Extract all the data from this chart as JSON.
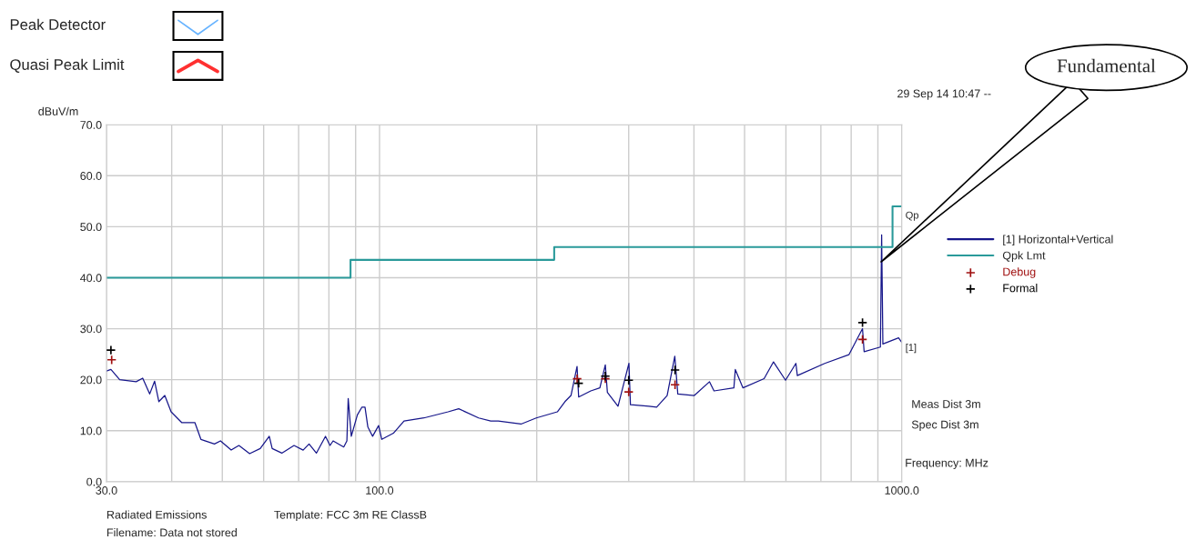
{
  "chart_data": {
    "type": "line",
    "ylabel": "dBuV/m",
    "xlabel": "Frequency: MHz",
    "log": "x",
    "xlim": [
      30,
      1000
    ],
    "ylim": [
      0,
      70
    ],
    "xticks": [
      {
        "value": 30,
        "label": "30.0"
      },
      {
        "value": 40,
        "label": null
      },
      {
        "value": 50,
        "label": null
      },
      {
        "value": 60,
        "label": null
      },
      {
        "value": 70,
        "label": null
      },
      {
        "value": 80,
        "label": null
      },
      {
        "value": 90,
        "label": null
      },
      {
        "value": 100,
        "label": "100.0"
      },
      {
        "value": 200,
        "label": null
      },
      {
        "value": 300,
        "label": null
      },
      {
        "value": 400,
        "label": null
      },
      {
        "value": 500,
        "label": null
      },
      {
        "value": 600,
        "label": null
      },
      {
        "value": 700,
        "label": null
      },
      {
        "value": 800,
        "label": null
      },
      {
        "value": 900,
        "label": null
      },
      {
        "value": 1000,
        "label": "1000.0"
      }
    ],
    "yticks": [
      {
        "value": 0,
        "label": "0.0"
      },
      {
        "value": 10,
        "label": "10.0"
      },
      {
        "value": 20,
        "label": "20.0"
      },
      {
        "value": 30,
        "label": "30.0"
      },
      {
        "value": 40,
        "label": "40.0"
      },
      {
        "value": 50,
        "label": "50.0"
      },
      {
        "value": 60,
        "label": "60.0"
      },
      {
        "value": 70,
        "label": "70.0"
      }
    ],
    "grid": true,
    "legend": "right",
    "series": [
      {
        "name": "[1] Horizontal+Vertical",
        "color": "#16168a",
        "marker": "none",
        "x": [
          30.0,
          30.6,
          31.8,
          34.2,
          35.2,
          36.3,
          37.1,
          37.8,
          38.8,
          39.9,
          41.8,
          44.3,
          45.5,
          48.3,
          49.6,
          52.0,
          53.8,
          56.4,
          59.1,
          61.5,
          62.3,
          65.0,
          68.6,
          71.4,
          73.3,
          75.7,
          78.8,
          80.4,
          81.5,
          85.4,
          86.6,
          87.1,
          88.3,
          90.7,
          92.5,
          93.8,
          95.0,
          97.0,
          99.6,
          101.0,
          106.3,
          111.4,
          121.6,
          135.3,
          141.8,
          154.8,
          163.3,
          168.8,
          186.6,
          199.6,
          219.0,
          226.5,
          232.6,
          238.9,
          240.6,
          253.8,
          264.2,
          270.6,
          273.1,
          286.2,
          300.3,
          302.3,
          328,
          339.3,
          355.4,
          367.6,
          372.5,
          400.6,
          428.4,
          437,
          477,
          480,
          496.5,
          545,
          568,
          599,
          627,
          631,
          712,
          792,
          841,
          847,
          910,
          915,
          920,
          986,
          1000
        ],
        "values": [
          21.7,
          22.0,
          20.0,
          19.6,
          20.3,
          17.2,
          19.7,
          15.7,
          16.9,
          13.7,
          11.6,
          11.6,
          8.3,
          7.4,
          8.0,
          6.2,
          7.1,
          5.5,
          6.5,
          8.9,
          6.5,
          5.6,
          7.1,
          6.2,
          7.4,
          5.6,
          8.9,
          7.1,
          8.0,
          6.8,
          8.0,
          16.3,
          8.9,
          13.1,
          14.6,
          14.6,
          10.7,
          8.9,
          11.0,
          8.3,
          9.5,
          11.9,
          12.5,
          13.7,
          14.3,
          12.5,
          11.9,
          11.9,
          11.3,
          12.5,
          13.7,
          15.7,
          16.9,
          22.6,
          16.6,
          17.8,
          18.4,
          22.9,
          17.5,
          14.8,
          23.2,
          15.1,
          14.8,
          14.6,
          16.9,
          24.6,
          17.2,
          16.9,
          19.6,
          17.8,
          18.4,
          22.0,
          18.4,
          20.2,
          23.5,
          19.9,
          23.2,
          20.8,
          23.2,
          24.9,
          30.0,
          25.5,
          26.4,
          48.4,
          27.0,
          28.2,
          27.3
        ]
      },
      {
        "name": "Qpk Lmt",
        "type": "step",
        "color": "#2a9a9a",
        "marker": "none",
        "x": [
          30,
          88,
          216,
          960,
          1000
        ],
        "values": [
          40,
          43.5,
          46,
          54,
          54
        ]
      },
      {
        "name": "Debug",
        "type": "scatter",
        "color": "#a01010",
        "marker": "cross",
        "x": [
          30.7,
          239,
          270.6,
          300,
          368,
          841
        ],
        "values": [
          23.9,
          20.2,
          20.2,
          17.6,
          19.0,
          27.9
        ]
      },
      {
        "name": "Formal",
        "type": "scatter",
        "color": "#000000",
        "marker": "cross",
        "x": [
          30.6,
          240.6,
          270.6,
          300,
          368,
          841
        ],
        "values": [
          25.8,
          19.3,
          20.7,
          19.9,
          21.9,
          31.2
        ]
      }
    ],
    "annotations": [
      "Peak Detector",
      "Quasi Peak Limit",
      "29 Sep 14 10:47 --",
      "Meas Dist 3m",
      "Spec Dist 3m",
      "Radiated Emissions",
      "Filename: Data not stored",
      "Template: FCC 3m RE ClassB",
      "Qp",
      "[1]",
      "Fundamental"
    ]
  }
}
